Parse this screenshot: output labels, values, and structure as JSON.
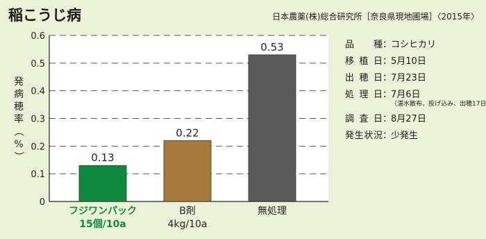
{
  "title": "稲こうじ病",
  "source": "日本農薬(株)総合研究所［奈良県現地圃場］〈2015年〉",
  "info": {
    "rows": [
      {
        "label": "品　種",
        "value": "コシヒカリ"
      },
      {
        "label": "移植日",
        "value": "5月10日"
      },
      {
        "label": "出穂日",
        "value": "7月23日"
      },
      {
        "label": "処理日",
        "value": "7月6日"
      },
      {
        "label": "調査日",
        "value": "8月27日"
      },
      {
        "label": "発生状況",
        "value": "少発生"
      }
    ],
    "note": "（湛水散布、投げ込み、出穂17日前）"
  },
  "chart_data": {
    "type": "bar",
    "ylabel": "発病穂率（%）",
    "ylim": [
      0,
      0.6
    ],
    "yticks": [
      "0",
      "0.1",
      "0.2",
      "0.3",
      "0.4",
      "0.5",
      "0.6"
    ],
    "categories": [
      {
        "line1": "フジワンパック",
        "line2": "15個/10a"
      },
      {
        "line1": "B剤",
        "line2": "4kg/10a"
      },
      {
        "line1": "無処理",
        "line2": ""
      }
    ],
    "values": [
      0.13,
      0.22,
      0.53
    ],
    "value_labels": [
      "0.13",
      "0.22",
      "0.53"
    ],
    "colors": [
      "#0f8a3c",
      "#a67a3a",
      "#5a5a5a"
    ],
    "label_colors": [
      "#0f8a3c",
      "#222222",
      "#222222"
    ],
    "grid": true
  }
}
